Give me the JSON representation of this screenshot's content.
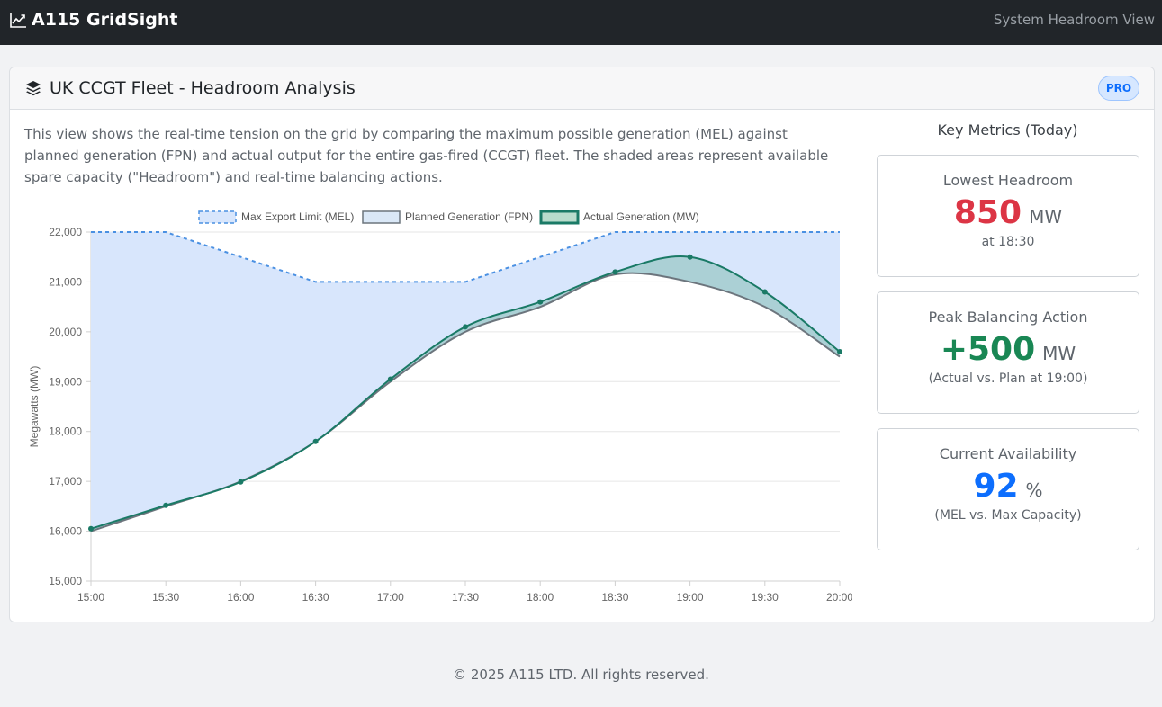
{
  "navbar": {
    "brand": "A115 GridSight",
    "view_label": "System Headroom View"
  },
  "card": {
    "title": "UK CCGT Fleet - Headroom Analysis",
    "badge": "PRO",
    "description": "This view shows the real-time tension on the grid by comparing the maximum possible generation (MEL) against planned generation (FPN) and actual output for the entire gas-fired (CCGT) fleet. The shaded areas represent available spare capacity (\"Headroom\") and real-time balancing actions."
  },
  "metrics": {
    "title": "Key Metrics (Today)",
    "items": [
      {
        "label": "Lowest Headroom",
        "value": "850",
        "unit": "MW",
        "note": "at 18:30",
        "color": "#dc3545"
      },
      {
        "label": "Peak Balancing Action",
        "value": "+500",
        "unit": "MW",
        "note": "(Actual vs. Plan at 19:00)",
        "color": "#198754"
      },
      {
        "label": "Current Availability",
        "value": "92",
        "unit": "%",
        "note": "(MEL vs. Max Capacity)",
        "color": "#0d6efd"
      }
    ]
  },
  "footer": {
    "text": "© 2025 A115 LTD. All rights reserved."
  },
  "chart_data": {
    "type": "line",
    "categories": [
      "15:00",
      "15:30",
      "16:00",
      "16:30",
      "17:00",
      "17:30",
      "18:00",
      "18:30",
      "19:00",
      "19:30",
      "20:00"
    ],
    "series": [
      {
        "name": "Max Export Limit (MEL)",
        "values": [
          22000,
          22000,
          21500,
          21000,
          21000,
          21000,
          21500,
          22000,
          22000,
          22000,
          22000
        ],
        "color": "#4a90e2",
        "fill": "#d8e6fc"
      },
      {
        "name": "Planned Generation (FPN)",
        "values": [
          16000,
          16500,
          17000,
          17800,
          19000,
          20000,
          20500,
          21150,
          21000,
          20500,
          19500
        ],
        "color": "#6c757d",
        "fill": "#dae8f7"
      },
      {
        "name": "Actual Generation (MW)",
        "values": [
          16050,
          16520,
          16990,
          17800,
          19050,
          20100,
          20600,
          21200,
          21500,
          20800,
          19600
        ],
        "color": "#1a7a66",
        "fill": "#a9cfd3"
      }
    ],
    "ylabel": "Megawatts (MW)",
    "ylim": [
      15000,
      22000
    ],
    "yticks": [
      15000,
      16000,
      17000,
      18000,
      19000,
      20000,
      21000,
      22000
    ],
    "ytick_labels": [
      "15,000",
      "16,000",
      "17,000",
      "18,000",
      "19,000",
      "20,000",
      "21,000",
      "22,000"
    ],
    "legend_position": "top"
  }
}
